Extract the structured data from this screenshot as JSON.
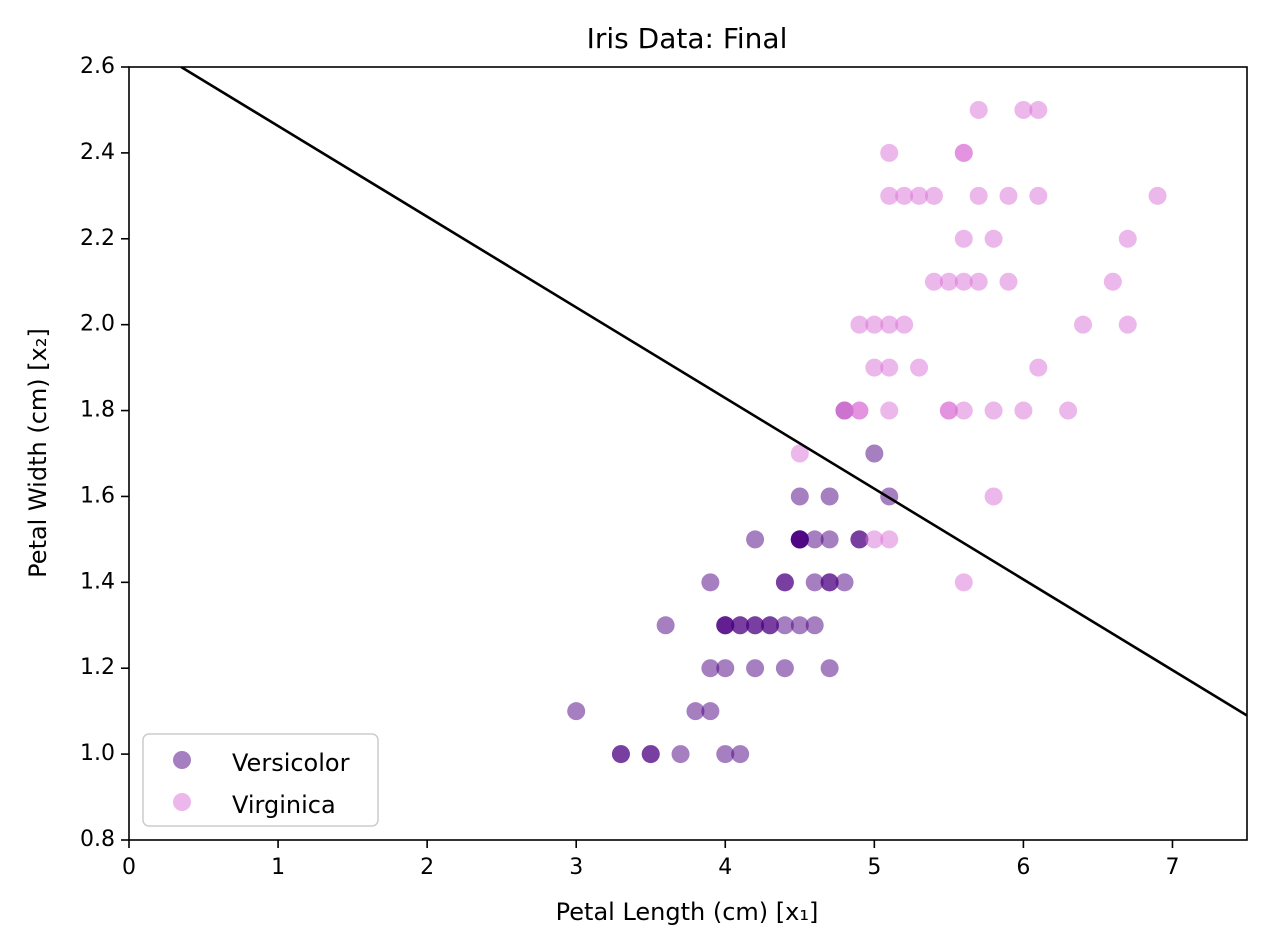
{
  "chart_data": {
    "type": "scatter",
    "title": "Iris Data: Final",
    "xlabel": "Petal Length (cm) [x₁]",
    "ylabel": "Petal Width (cm) [x₂]",
    "xlim": [
      0,
      7.5
    ],
    "ylim": [
      0.8,
      2.6
    ],
    "xticks": [
      "0",
      "1",
      "2",
      "3",
      "4",
      "5",
      "6",
      "7"
    ],
    "yticks": [
      "0.8",
      "1.0",
      "1.2",
      "1.4",
      "1.6",
      "1.8",
      "2.0",
      "2.2",
      "2.4",
      "2.6"
    ],
    "grid": false,
    "legend_position": "lower-left",
    "series": [
      {
        "name": "Versicolor",
        "color": "#4b0082",
        "points": [
          [
            4.7,
            1.4
          ],
          [
            4.5,
            1.5
          ],
          [
            4.9,
            1.5
          ],
          [
            4.0,
            1.3
          ],
          [
            4.6,
            1.5
          ],
          [
            4.5,
            1.3
          ],
          [
            4.7,
            1.6
          ],
          [
            3.3,
            1.0
          ],
          [
            4.6,
            1.3
          ],
          [
            3.9,
            1.4
          ],
          [
            3.5,
            1.0
          ],
          [
            4.2,
            1.5
          ],
          [
            4.0,
            1.0
          ],
          [
            4.7,
            1.4
          ],
          [
            3.6,
            1.3
          ],
          [
            4.4,
            1.4
          ],
          [
            4.5,
            1.5
          ],
          [
            4.1,
            1.0
          ],
          [
            4.5,
            1.5
          ],
          [
            3.9,
            1.1
          ],
          [
            4.8,
            1.8
          ],
          [
            4.0,
            1.3
          ],
          [
            4.9,
            1.5
          ],
          [
            4.7,
            1.2
          ],
          [
            4.3,
            1.3
          ],
          [
            4.4,
            1.4
          ],
          [
            4.8,
            1.4
          ],
          [
            5.0,
            1.7
          ],
          [
            4.5,
            1.5
          ],
          [
            3.5,
            1.0
          ],
          [
            3.8,
            1.1
          ],
          [
            3.7,
            1.0
          ],
          [
            3.9,
            1.2
          ],
          [
            5.1,
            1.6
          ],
          [
            4.5,
            1.5
          ],
          [
            4.5,
            1.6
          ],
          [
            4.7,
            1.5
          ],
          [
            4.4,
            1.3
          ],
          [
            4.1,
            1.3
          ],
          [
            4.0,
            1.3
          ],
          [
            4.4,
            1.2
          ],
          [
            4.6,
            1.4
          ],
          [
            4.0,
            1.2
          ],
          [
            3.3,
            1.0
          ],
          [
            4.2,
            1.3
          ],
          [
            4.2,
            1.2
          ],
          [
            4.2,
            1.3
          ],
          [
            4.3,
            1.3
          ],
          [
            3.0,
            1.1
          ],
          [
            4.1,
            1.3
          ]
        ]
      },
      {
        "name": "Virginica",
        "color": "#da70d6",
        "points": [
          [
            6.0,
            2.5
          ],
          [
            5.1,
            1.9
          ],
          [
            5.9,
            2.1
          ],
          [
            5.6,
            1.8
          ],
          [
            5.8,
            2.2
          ],
          [
            6.6,
            2.1
          ],
          [
            4.5,
            1.7
          ],
          [
            6.3,
            1.8
          ],
          [
            5.8,
            1.8
          ],
          [
            6.1,
            2.5
          ],
          [
            5.1,
            2.0
          ],
          [
            5.3,
            1.9
          ],
          [
            5.5,
            2.1
          ],
          [
            5.0,
            2.0
          ],
          [
            5.1,
            2.4
          ],
          [
            5.3,
            2.3
          ],
          [
            5.5,
            1.8
          ],
          [
            6.7,
            2.2
          ],
          [
            6.9,
            2.3
          ],
          [
            5.0,
            1.5
          ],
          [
            5.7,
            2.3
          ],
          [
            4.9,
            2.0
          ],
          [
            6.7,
            2.0
          ],
          [
            4.9,
            1.8
          ],
          [
            5.7,
            2.1
          ],
          [
            6.0,
            1.8
          ],
          [
            4.8,
            1.8
          ],
          [
            4.9,
            1.8
          ],
          [
            5.6,
            2.1
          ],
          [
            5.8,
            1.6
          ],
          [
            6.1,
            1.9
          ],
          [
            6.4,
            2.0
          ],
          [
            5.6,
            2.2
          ],
          [
            5.1,
            1.5
          ],
          [
            5.6,
            1.4
          ],
          [
            6.1,
            2.3
          ],
          [
            5.6,
            2.4
          ],
          [
            5.5,
            1.8
          ],
          [
            4.8,
            1.8
          ],
          [
            5.4,
            2.1
          ],
          [
            5.6,
            2.4
          ],
          [
            5.1,
            2.3
          ],
          [
            5.9,
            2.3
          ],
          [
            5.7,
            2.5
          ],
          [
            5.2,
            2.3
          ],
          [
            5.0,
            1.9
          ],
          [
            5.2,
            2.0
          ],
          [
            5.4,
            2.3
          ],
          [
            5.1,
            1.8
          ]
        ]
      }
    ],
    "decision_boundary": {
      "color": "#000000",
      "points": [
        [
          0.35,
          2.6
        ],
        [
          7.5,
          1.09
        ]
      ]
    }
  }
}
